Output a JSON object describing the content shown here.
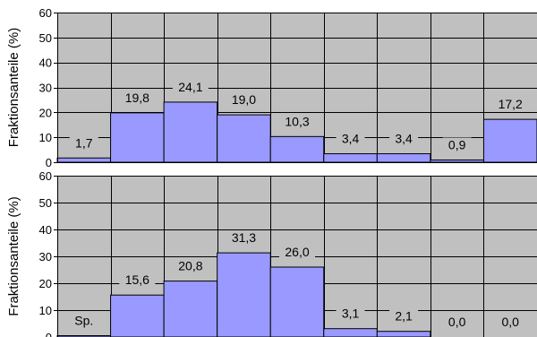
{
  "chart_data": [
    {
      "type": "bar",
      "ylabel": "Fraktionsanteile (%)",
      "ylim": [
        0,
        60
      ],
      "yticks": [
        0,
        10,
        20,
        30,
        40,
        50,
        60
      ],
      "grid": true,
      "values": [
        1.7,
        19.8,
        24.1,
        19.0,
        10.3,
        3.4,
        3.4,
        0.9,
        17.2
      ],
      "value_labels": [
        "1,7",
        "19,8",
        "24,1",
        "19,0",
        "10,3",
        "3,4",
        "3,4",
        "0,9",
        "17,2"
      ],
      "colors": {
        "plot_background": "#c0c0c0",
        "bar_fill": "#9999ff",
        "bar_stroke": "#000000",
        "grid": "#000000"
      }
    },
    {
      "type": "bar",
      "ylabel": "Fraktionsanteile (%)",
      "ylim": [
        0,
        60
      ],
      "yticks": [
        0,
        10,
        20,
        30,
        40,
        50,
        60
      ],
      "grid": true,
      "values": [
        0.5,
        15.6,
        20.8,
        31.3,
        26.0,
        3.1,
        2.1,
        0.0,
        0.0
      ],
      "value_labels": [
        "Sp.",
        "15,6",
        "20,8",
        "31,3",
        "26,0",
        "3,1",
        "2,1",
        "0,0",
        "0,0"
      ],
      "colors": {
        "plot_background": "#c0c0c0",
        "bar_fill": "#9999ff",
        "bar_stroke": "#000000",
        "grid": "#000000"
      }
    }
  ]
}
